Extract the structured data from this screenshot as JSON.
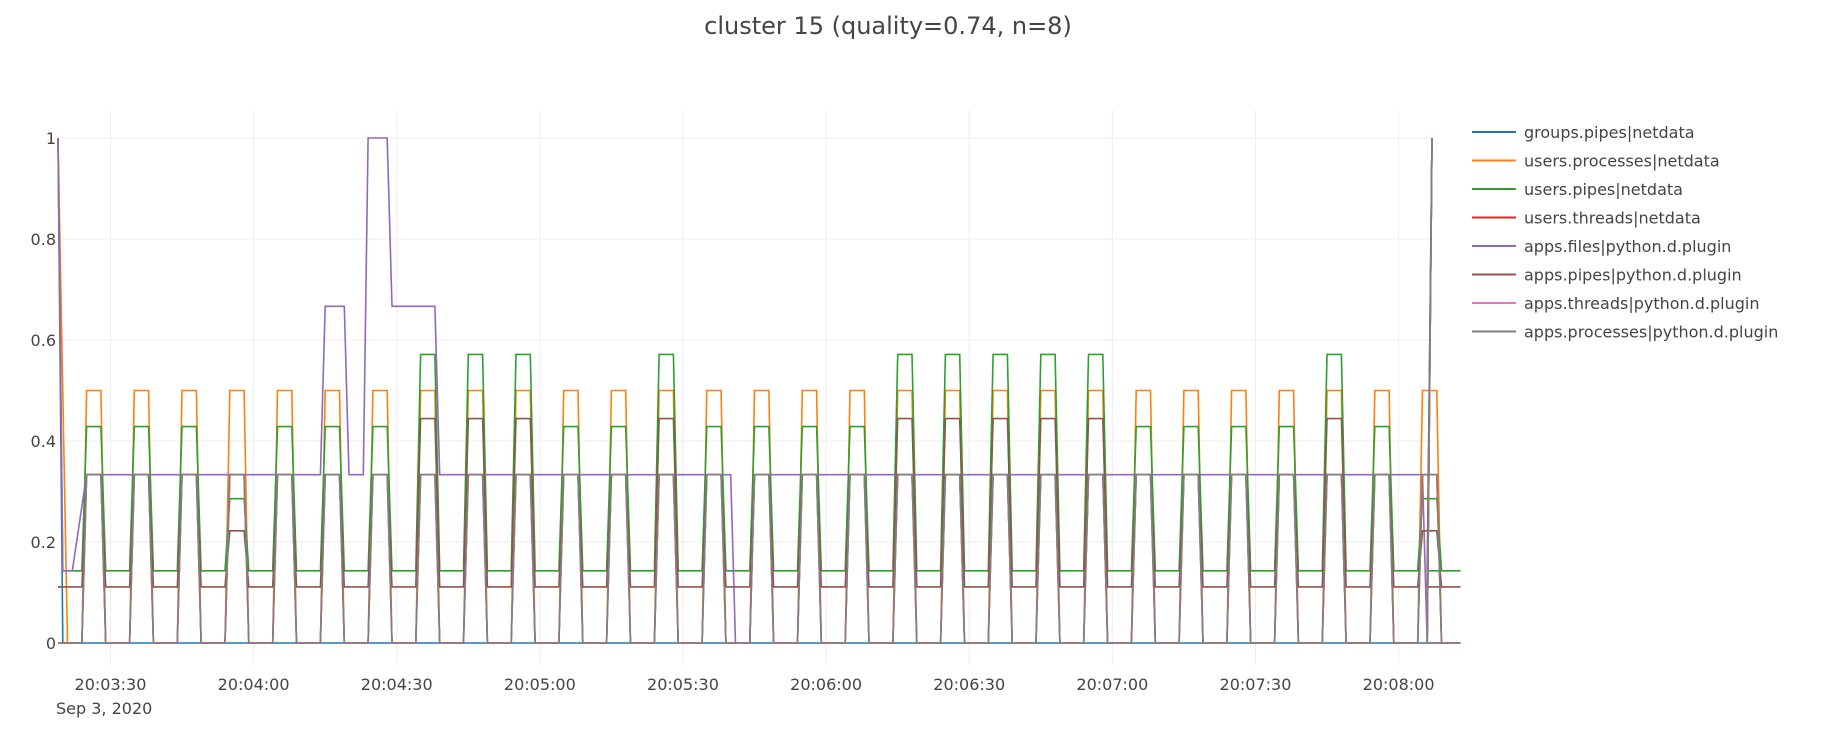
{
  "chart_data": {
    "type": "line",
    "title": "cluster 15 (quality=0.74, n=8)",
    "xlabel": "",
    "ylabel": "",
    "x_ticks": [
      "20:03:30",
      "20:04:00",
      "20:04:30",
      "20:05:00",
      "20:05:30",
      "20:06:00",
      "20:06:30",
      "20:07:00",
      "20:07:30",
      "20:08:00"
    ],
    "x_tick_seconds": [
      0,
      30,
      60,
      90,
      120,
      150,
      180,
      210,
      240,
      270
    ],
    "x_date_label": "Sep 3, 2020",
    "x_range": [
      "2020-09-03 20:03:19",
      "2020-09-03 20:08:07"
    ],
    "y_ticks": [
      "0",
      "0.2",
      "0.4",
      "0.6",
      "0.8",
      "1"
    ],
    "y_tick_values": [
      0,
      0.2,
      0.4,
      0.6,
      0.8,
      1
    ],
    "ylim": [
      0,
      1
    ],
    "grid": true,
    "legend_position": "top-right",
    "series": [
      {
        "name": "groups.pipes|netdata",
        "color": "#1f77b4",
        "pattern": "groups_pipes"
      },
      {
        "name": "users.processes|netdata",
        "color": "#ff7f0e",
        "pattern": "processes"
      },
      {
        "name": "users.pipes|netdata",
        "color": "#2ca02c",
        "pattern": "users_pipes"
      },
      {
        "name": "users.threads|netdata",
        "color": "#d62728",
        "pattern": "pulse"
      },
      {
        "name": "apps.files|python.d.plugin",
        "color": "#9467bd",
        "pattern": "files"
      },
      {
        "name": "apps.pipes|python.d.plugin",
        "color": "#8c564b",
        "pattern": "apps_pipes"
      },
      {
        "name": "apps.threads|python.d.plugin",
        "color": "#e377c2",
        "pattern": "pulse"
      },
      {
        "name": "apps.processes|python.d.plugin",
        "color": "#7f7f7f",
        "pattern": "pulse"
      }
    ],
    "pulse_period_seconds": 10,
    "pulse_values": {
      "users.processes": {
        "high": 0.5,
        "low": 0
      },
      "users.pipes_cycle": [
        0.4286,
        0.4286,
        0.4286,
        0.2857,
        0.4286,
        0.4286,
        0.4286,
        0.5714,
        0.5714,
        0.5714,
        0.4286,
        0.4286,
        0.5714,
        0.4286,
        0.4286,
        0.4286,
        0.4286,
        0.5714,
        0.5714,
        0.5714,
        0.5714,
        0.5714,
        0.4286,
        0.4286,
        0.4286,
        0.4286,
        0.5714,
        0.4286,
        0.2857
      ],
      "users.pipes_low": 0.1429,
      "apps.pipes_cycle": [
        0.3333,
        0.3333,
        0.3333,
        0.2222,
        0.3333,
        0.3333,
        0.3333,
        0.4444,
        0.4444,
        0.4444,
        0.3333,
        0.3333,
        0.4444,
        0.3333,
        0.3333,
        0.3333,
        0.3333,
        0.4444,
        0.4444,
        0.4444,
        0.4444,
        0.4444,
        0.3333,
        0.3333,
        0.3333,
        0.3333,
        0.4444,
        0.3333,
        0.2222
      ],
      "apps.pipes_low": 0.1111,
      "pulse_high": 0.3333,
      "files_steps": [
        {
          "t": "20:03:19",
          "v": 1
        },
        {
          "t": "20:03:20",
          "v": 0.1429
        },
        {
          "t": "20:03:22",
          "v": 0.1429
        },
        {
          "t": "20:03:25",
          "v": 0.3333
        },
        {
          "t": "20:04:14",
          "v": 0.3333
        },
        {
          "t": "20:04:15",
          "v": 0.6667
        },
        {
          "t": "20:04:19",
          "v": 0.6667
        },
        {
          "t": "20:04:20",
          "v": 0.3333
        },
        {
          "t": "20:04:23",
          "v": 0.3333
        },
        {
          "t": "20:04:24",
          "v": 1
        },
        {
          "t": "20:04:28",
          "v": 1
        },
        {
          "t": "20:04:29",
          "v": 0.6667
        },
        {
          "t": "20:04:38",
          "v": 0.6667
        },
        {
          "t": "20:04:39",
          "v": 0.3333
        },
        {
          "t": "20:05:40",
          "v": 0.3333
        },
        {
          "t": "20:05:41",
          "v": 0
        },
        {
          "t": "20:05:44",
          "v": 0
        },
        {
          "t": "20:05:45",
          "v": 0.3333
        },
        {
          "t": "20:08:05",
          "v": 0.3333
        },
        {
          "t": "20:08:06",
          "v": 0
        },
        {
          "t": "20:08:07",
          "v": 1
        }
      ]
    }
  }
}
